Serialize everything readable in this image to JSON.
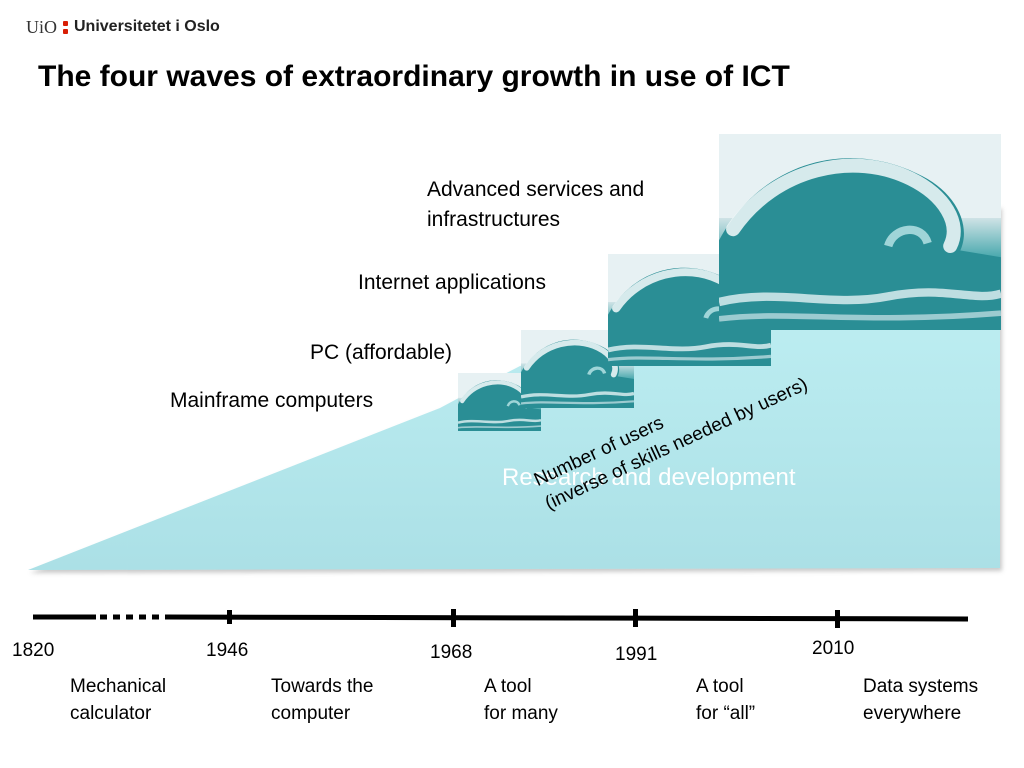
{
  "logo": {
    "uio": "UiO",
    "name": "Universitetet i Oslo"
  },
  "title": "The four waves of extraordinary growth in use of ICT",
  "wave_labels": {
    "mainframe": "Mainframe computers",
    "pc": "PC (affordable)",
    "internet": "Internet applications",
    "advanced_line1": "Advanced services and",
    "advanced_line2": "infrastructures"
  },
  "background_label": "Research and development",
  "users_label": {
    "line1": "Number of users",
    "line2": "(inverse of skills needed by users)"
  },
  "timeline": {
    "years": [
      "1820",
      "1946",
      "1968",
      "1991",
      "2010"
    ],
    "eras": [
      {
        "line1": "Mechanical",
        "line2": "calculator"
      },
      {
        "line1": "Towards the",
        "line2": "computer"
      },
      {
        "line1": "A tool",
        "line2": "for many"
      },
      {
        "line1": "A tool",
        "line2": "for “all”"
      },
      {
        "line1": "Data systems",
        "line2": "everywhere"
      }
    ]
  },
  "colors": {
    "wedge_top": "#c4f3f6",
    "wedge_bottom": "#abe0e6",
    "wave_dark": "#1f7f86",
    "wave_mid": "#4aa9ae",
    "foam": "#eef6f7",
    "timeline": "#000000"
  },
  "icons": [
    "ocean-wave-image"
  ]
}
